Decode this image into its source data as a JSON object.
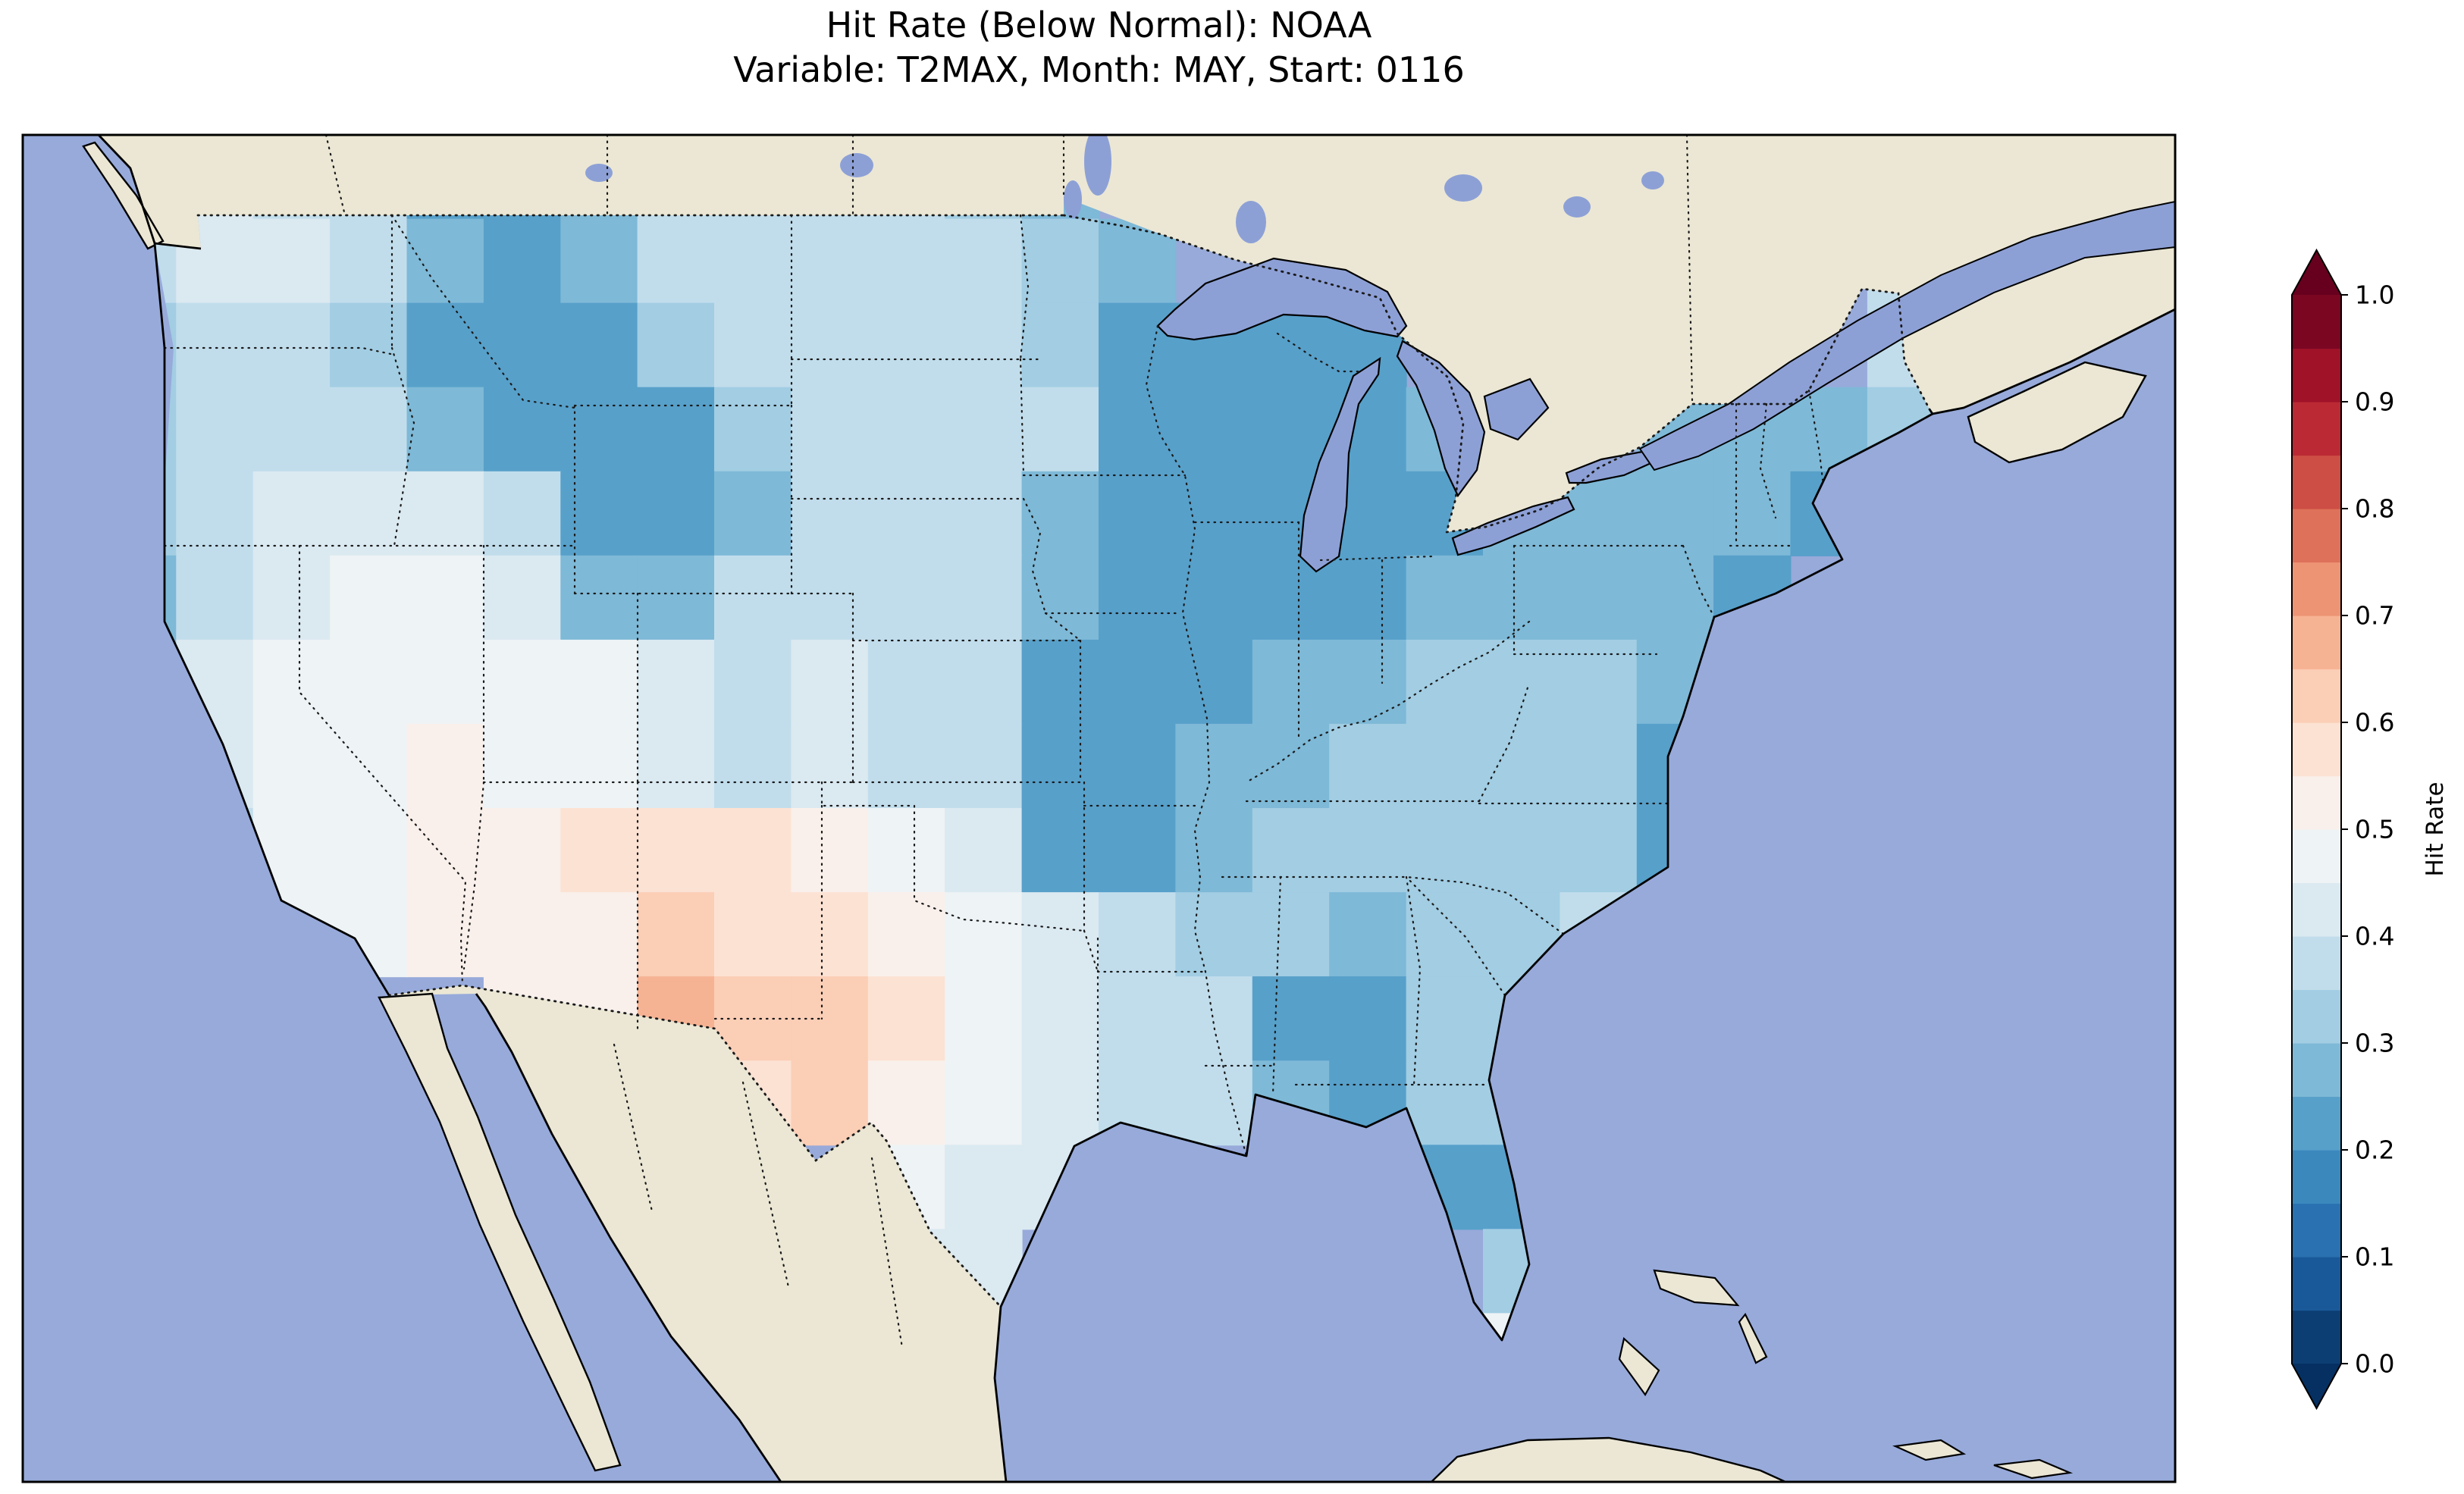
{
  "figure": {
    "title_line1": "Hit Rate (Below Normal): NOAA",
    "title_line2": "Variable: T2MAX, Month: MAY, Start: 0116"
  },
  "chart_data": {
    "type": "heatmap",
    "title": "Hit Rate (Below Normal): NOAA",
    "subtitle": "Variable: T2MAX, Month: MAY, Start: 0116",
    "metric": "Hit Rate (Below Normal)",
    "source": "NOAA",
    "variable": "T2MAX",
    "month": "MAY",
    "start": "0116",
    "region": "Contiguous United States with surrounding Canada, Mexico, Pacific and Atlantic",
    "colorbar": {
      "label": "Hit Rate",
      "tick_labels": [
        "0.0",
        "0.1",
        "0.2",
        "0.3",
        "0.4",
        "0.5",
        "0.6",
        "0.7",
        "0.8",
        "0.9",
        "1.0"
      ],
      "min": 0.0,
      "max": 1.0,
      "band_step": 0.05,
      "colormap": "RdBu_r (blue = low hit rate, red = high hit rate)",
      "band_colors_low_to_high": [
        "#0c3e74",
        "#1a5999",
        "#2a71b2",
        "#3b88bd",
        "#57a0ca",
        "#7eb9d7",
        "#a2cde3",
        "#c1ddec",
        "#dbe9f1",
        "#eef3f5",
        "#f9f0eb",
        "#fce2d3",
        "#fbceb6",
        "#f6b393",
        "#ed9475",
        "#de715a",
        "#cd4e44",
        "#bb2a34",
        "#9f1228",
        "#7a0622"
      ],
      "extend_low_color": "#053061",
      "extend_high_color": "#67001f"
    },
    "map_colors": {
      "ocean": "#97aada",
      "land": "#ebe7d4",
      "lake": "#8da0d6",
      "coastline": "#000000",
      "borders": "#1a1a1a",
      "background": "#ffffff"
    },
    "grid": {
      "description": "Approximate hit-rate values on a 28x16 lon/lat grid over the map extent; null = no data (outside CONUS)",
      "lon_west": -129,
      "lon_east": -59,
      "lat_north": 50.7,
      "lat_south": 22.2,
      "values": [
        [
          null,
          0.42,
          0.42,
          0.37,
          0.37,
          0.22,
          0.22,
          0.27,
          0.37,
          0.37,
          0.37,
          0.37,
          0.32,
          0.27,
          null,
          null,
          null,
          null,
          null,
          null,
          null,
          null,
          null,
          null,
          null,
          null,
          null,
          null
        ],
        [
          null,
          0.37,
          0.42,
          0.42,
          0.37,
          0.27,
          0.22,
          0.27,
          0.37,
          0.37,
          0.37,
          0.37,
          0.37,
          0.32,
          0.27,
          null,
          null,
          null,
          null,
          null,
          null,
          null,
          null,
          null,
          0.37,
          null,
          null,
          null
        ],
        [
          null,
          0.32,
          0.37,
          0.37,
          0.32,
          0.22,
          0.22,
          0.22,
          0.32,
          0.37,
          0.37,
          0.37,
          0.37,
          0.32,
          0.22,
          0.22,
          0.22,
          0.22,
          null,
          null,
          null,
          null,
          null,
          null,
          0.37,
          null,
          null,
          null
        ],
        [
          null,
          0.32,
          0.37,
          0.37,
          0.37,
          0.27,
          0.22,
          0.22,
          0.22,
          0.32,
          0.37,
          0.37,
          0.37,
          0.37,
          0.22,
          0.22,
          0.22,
          0.22,
          0.27,
          null,
          null,
          0.27,
          0.27,
          0.27,
          0.32,
          null,
          null,
          null
        ],
        [
          null,
          0.32,
          0.37,
          0.42,
          0.42,
          0.42,
          0.37,
          0.22,
          0.22,
          0.27,
          0.37,
          0.37,
          0.37,
          0.27,
          0.22,
          0.22,
          0.22,
          0.22,
          0.22,
          0.27,
          0.27,
          0.27,
          0.27,
          0.22,
          null,
          null,
          null,
          null
        ],
        [
          null,
          0.27,
          0.37,
          0.42,
          0.47,
          0.47,
          0.42,
          0.27,
          0.27,
          0.37,
          0.37,
          0.37,
          0.37,
          0.27,
          0.22,
          0.22,
          0.22,
          0.22,
          0.27,
          0.27,
          0.27,
          0.27,
          0.22,
          null,
          null,
          null,
          null,
          null
        ],
        [
          null,
          0.27,
          0.42,
          0.47,
          0.47,
          0.47,
          0.47,
          0.47,
          0.42,
          0.37,
          0.42,
          0.37,
          0.37,
          0.22,
          0.22,
          0.22,
          0.27,
          0.27,
          0.32,
          0.32,
          0.32,
          0.27,
          null,
          null,
          null,
          null,
          null,
          null
        ],
        [
          null,
          0.32,
          0.42,
          0.47,
          0.47,
          0.52,
          0.47,
          0.47,
          0.42,
          0.37,
          0.42,
          0.37,
          0.37,
          0.22,
          0.22,
          0.27,
          0.27,
          0.32,
          0.32,
          0.32,
          0.32,
          0.22,
          null,
          null,
          null,
          null,
          null,
          null
        ],
        [
          null,
          null,
          0.37,
          0.47,
          0.47,
          0.52,
          0.52,
          0.57,
          0.57,
          0.57,
          0.52,
          0.47,
          0.42,
          0.22,
          0.22,
          0.27,
          0.32,
          0.32,
          0.32,
          0.32,
          0.32,
          0.22,
          0.32,
          null,
          null,
          null,
          null,
          null
        ],
        [
          null,
          null,
          null,
          0.47,
          0.47,
          0.52,
          0.52,
          0.52,
          0.62,
          0.57,
          0.57,
          0.52,
          0.47,
          0.42,
          0.37,
          0.32,
          0.32,
          0.27,
          0.32,
          0.32,
          0.37,
          0.32,
          null,
          null,
          null,
          null,
          null,
          null
        ],
        [
          null,
          null,
          null,
          null,
          null,
          null,
          0.52,
          0.52,
          0.67,
          0.62,
          0.62,
          0.57,
          0.47,
          0.42,
          0.37,
          0.37,
          0.22,
          0.22,
          0.32,
          0.32,
          0.32,
          null,
          null,
          null,
          null,
          null,
          null,
          null
        ],
        [
          null,
          null,
          null,
          null,
          null,
          null,
          null,
          null,
          null,
          0.57,
          0.62,
          0.52,
          0.47,
          0.42,
          0.37,
          0.37,
          0.27,
          0.22,
          0.32,
          0.32,
          0.32,
          null,
          null,
          null,
          null,
          null,
          null,
          null
        ],
        [
          null,
          null,
          null,
          null,
          null,
          null,
          null,
          null,
          null,
          null,
          null,
          0.47,
          0.42,
          0.42,
          null,
          null,
          null,
          null,
          0.22,
          0.22,
          0.27,
          null,
          null,
          null,
          null,
          null,
          null,
          null
        ],
        [
          null,
          null,
          null,
          null,
          null,
          null,
          null,
          null,
          null,
          null,
          null,
          0.42,
          0.42,
          null,
          null,
          null,
          null,
          null,
          null,
          0.32,
          0.32,
          null,
          null,
          null,
          null,
          null,
          null,
          null
        ],
        [
          null,
          null,
          null,
          null,
          null,
          null,
          null,
          null,
          null,
          null,
          null,
          null,
          0.42,
          null,
          null,
          null,
          null,
          null,
          null,
          0.47,
          0.32,
          null,
          null,
          null,
          null,
          null,
          null,
          null
        ],
        [
          null,
          null,
          null,
          null,
          null,
          null,
          null,
          null,
          null,
          null,
          null,
          null,
          null,
          null,
          null,
          null,
          null,
          null,
          null,
          null,
          null,
          null,
          null,
          null,
          null,
          null,
          null,
          null
        ]
      ]
    },
    "regional_pattern_summary": [
      "Most of CONUS shows hit rates ~0.2-0.45 (blues)",
      "Darkest blues (~0.2-0.25): Upper Midwest (MN/WI/MI/IA/IL/E-MO), western Montana/Wyoming, Northeast, an east-Kansas/Ozarks arm, southern Mississippi/Alabama, central Florida, coastal Virginia/Carolinas",
      "Near-white (~0.45-0.55): Great Basin, Utah, Arizona, central/south Texas",
      "Pale pink to orange (~0.55-0.7): New Mexico and far west Texas, peaking in southern New Mexico"
    ]
  }
}
